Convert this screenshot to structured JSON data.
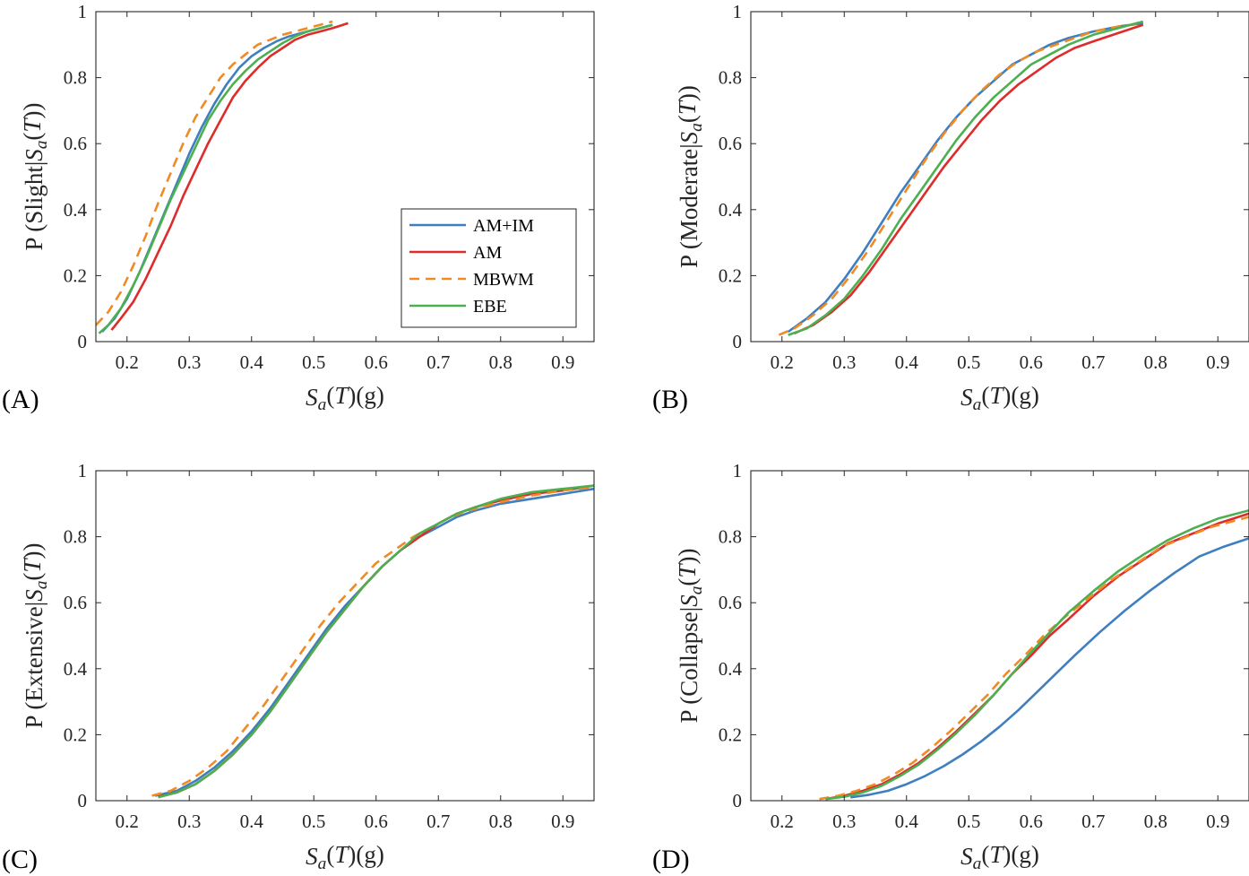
{
  "colors": {
    "AM+IM": "#3f7fbf",
    "AM": "#de2b2b",
    "MBWM": "#f08a24",
    "EBE": "#4caf50",
    "axis": "#262626"
  },
  "legend_entries": [
    "AM+IM",
    "AM",
    "MBWM",
    "EBE"
  ],
  "chart_data": [
    {
      "type": "line",
      "panel": "(A)",
      "xlabel": "S_a(T)(g)",
      "ylabel": "P (Slight|S_a(T))",
      "xlim": [
        0.15,
        0.95
      ],
      "ylim": [
        0,
        1
      ],
      "xticks": [
        "0.2",
        "0.3",
        "0.4",
        "0.5",
        "0.6",
        "0.7",
        "0.8",
        "0.9"
      ],
      "yticks": [
        "0",
        "0.2",
        "0.4",
        "0.6",
        "0.8",
        "1"
      ],
      "legend": "bottom-right",
      "grid": false,
      "series": [
        {
          "name": "AM+IM",
          "style": "solid",
          "x": [
            0.16,
            0.18,
            0.2,
            0.22,
            0.24,
            0.26,
            0.28,
            0.3,
            0.32,
            0.34,
            0.36,
            0.38,
            0.4,
            0.42,
            0.44,
            0.46,
            0.48,
            0.5,
            0.52,
            0.53
          ],
          "y": [
            0.03,
            0.07,
            0.13,
            0.21,
            0.3,
            0.39,
            0.48,
            0.57,
            0.65,
            0.72,
            0.78,
            0.83,
            0.865,
            0.89,
            0.91,
            0.925,
            0.935,
            0.945,
            0.955,
            0.96
          ]
        },
        {
          "name": "AM",
          "style": "solid",
          "x": [
            0.175,
            0.19,
            0.21,
            0.23,
            0.25,
            0.27,
            0.29,
            0.31,
            0.33,
            0.35,
            0.37,
            0.39,
            0.41,
            0.43,
            0.45,
            0.47,
            0.49,
            0.51,
            0.53,
            0.555
          ],
          "y": [
            0.035,
            0.07,
            0.12,
            0.19,
            0.27,
            0.35,
            0.44,
            0.52,
            0.6,
            0.67,
            0.74,
            0.79,
            0.83,
            0.865,
            0.89,
            0.915,
            0.93,
            0.94,
            0.95,
            0.965
          ]
        },
        {
          "name": "MBWM",
          "style": "dashed",
          "x": [
            0.15,
            0.17,
            0.19,
            0.21,
            0.23,
            0.25,
            0.27,
            0.29,
            0.31,
            0.33,
            0.35,
            0.37,
            0.39,
            0.41,
            0.43,
            0.45,
            0.47,
            0.49,
            0.51,
            0.53
          ],
          "y": [
            0.05,
            0.09,
            0.15,
            0.23,
            0.32,
            0.42,
            0.51,
            0.6,
            0.68,
            0.74,
            0.8,
            0.84,
            0.87,
            0.9,
            0.915,
            0.93,
            0.94,
            0.95,
            0.96,
            0.97
          ]
        },
        {
          "name": "EBE",
          "style": "solid",
          "x": [
            0.155,
            0.17,
            0.19,
            0.21,
            0.23,
            0.25,
            0.27,
            0.29,
            0.31,
            0.33,
            0.35,
            0.37,
            0.39,
            0.41,
            0.43,
            0.45,
            0.47,
            0.49,
            0.51,
            0.53
          ],
          "y": [
            0.025,
            0.05,
            0.1,
            0.17,
            0.25,
            0.34,
            0.43,
            0.51,
            0.59,
            0.67,
            0.73,
            0.78,
            0.82,
            0.855,
            0.88,
            0.905,
            0.925,
            0.94,
            0.95,
            0.96
          ]
        }
      ]
    },
    {
      "type": "line",
      "panel": "(B)",
      "xlabel": "S_a(T)(g)",
      "ylabel": "P (Moderate|S_a(T))",
      "xlim": [
        0.15,
        0.95
      ],
      "ylim": [
        0,
        1
      ],
      "xticks": [
        "0.2",
        "0.3",
        "0.4",
        "0.5",
        "0.6",
        "0.7",
        "0.8",
        "0.9"
      ],
      "yticks": [
        "0",
        "0.2",
        "0.4",
        "0.6",
        "0.8",
        "1"
      ],
      "grid": false,
      "series": [
        {
          "name": "AM+IM",
          "style": "solid",
          "x": [
            0.21,
            0.24,
            0.27,
            0.3,
            0.33,
            0.36,
            0.39,
            0.42,
            0.45,
            0.48,
            0.51,
            0.54,
            0.57,
            0.6,
            0.63,
            0.66,
            0.7,
            0.74,
            0.78
          ],
          "y": [
            0.03,
            0.07,
            0.12,
            0.19,
            0.27,
            0.36,
            0.45,
            0.53,
            0.61,
            0.68,
            0.74,
            0.79,
            0.84,
            0.87,
            0.9,
            0.92,
            0.94,
            0.955,
            0.965
          ]
        },
        {
          "name": "AM",
          "style": "solid",
          "x": [
            0.22,
            0.25,
            0.28,
            0.31,
            0.34,
            0.37,
            0.4,
            0.43,
            0.46,
            0.49,
            0.52,
            0.55,
            0.58,
            0.61,
            0.64,
            0.67,
            0.7,
            0.74,
            0.78
          ],
          "y": [
            0.025,
            0.05,
            0.09,
            0.14,
            0.21,
            0.29,
            0.37,
            0.45,
            0.53,
            0.6,
            0.67,
            0.73,
            0.78,
            0.82,
            0.86,
            0.89,
            0.91,
            0.935,
            0.96
          ]
        },
        {
          "name": "MBWM",
          "style": "dashed",
          "x": [
            0.195,
            0.22,
            0.25,
            0.28,
            0.31,
            0.34,
            0.37,
            0.4,
            0.43,
            0.46,
            0.49,
            0.52,
            0.55,
            0.58,
            0.61,
            0.64,
            0.67,
            0.7,
            0.74,
            0.78
          ],
          "y": [
            0.02,
            0.04,
            0.08,
            0.13,
            0.2,
            0.28,
            0.37,
            0.46,
            0.55,
            0.63,
            0.7,
            0.76,
            0.81,
            0.85,
            0.88,
            0.9,
            0.92,
            0.94,
            0.955,
            0.965
          ]
        },
        {
          "name": "EBE",
          "style": "solid",
          "x": [
            0.21,
            0.24,
            0.27,
            0.3,
            0.33,
            0.36,
            0.39,
            0.42,
            0.45,
            0.48,
            0.51,
            0.54,
            0.57,
            0.6,
            0.63,
            0.66,
            0.7,
            0.74,
            0.78
          ],
          "y": [
            0.02,
            0.04,
            0.08,
            0.13,
            0.2,
            0.28,
            0.37,
            0.45,
            0.53,
            0.61,
            0.68,
            0.74,
            0.79,
            0.84,
            0.87,
            0.9,
            0.93,
            0.95,
            0.97
          ]
        }
      ]
    },
    {
      "type": "line",
      "panel": "(C)",
      "xlabel": "S_a(T)(g)",
      "ylabel": "P (Extensive|S_a(T))",
      "xlim": [
        0.15,
        0.95
      ],
      "ylim": [
        0,
        1
      ],
      "xticks": [
        "0.2",
        "0.3",
        "0.4",
        "0.5",
        "0.6",
        "0.7",
        "0.8",
        "0.9"
      ],
      "yticks": [
        "0",
        "0.2",
        "0.4",
        "0.6",
        "0.8",
        "1"
      ],
      "grid": false,
      "series": [
        {
          "name": "AM+IM",
          "style": "solid",
          "x": [
            0.245,
            0.28,
            0.31,
            0.34,
            0.37,
            0.4,
            0.43,
            0.46,
            0.49,
            0.52,
            0.55,
            0.58,
            0.61,
            0.64,
            0.67,
            0.7,
            0.73,
            0.76,
            0.8,
            0.85,
            0.9,
            0.95
          ],
          "y": [
            0.015,
            0.03,
            0.06,
            0.1,
            0.15,
            0.21,
            0.28,
            0.36,
            0.44,
            0.52,
            0.59,
            0.65,
            0.71,
            0.76,
            0.8,
            0.83,
            0.86,
            0.88,
            0.9,
            0.915,
            0.93,
            0.945
          ]
        },
        {
          "name": "AM",
          "style": "solid",
          "x": [
            0.25,
            0.28,
            0.31,
            0.34,
            0.37,
            0.4,
            0.43,
            0.46,
            0.49,
            0.52,
            0.55,
            0.58,
            0.61,
            0.64,
            0.67,
            0.7,
            0.73,
            0.76,
            0.8,
            0.85,
            0.9,
            0.95
          ],
          "y": [
            0.012,
            0.025,
            0.05,
            0.09,
            0.14,
            0.2,
            0.27,
            0.35,
            0.43,
            0.51,
            0.58,
            0.65,
            0.71,
            0.76,
            0.8,
            0.84,
            0.87,
            0.89,
            0.91,
            0.93,
            0.94,
            0.955
          ]
        },
        {
          "name": "MBWM",
          "style": "dashed",
          "x": [
            0.24,
            0.27,
            0.3,
            0.33,
            0.36,
            0.39,
            0.42,
            0.45,
            0.48,
            0.51,
            0.54,
            0.57,
            0.6,
            0.63,
            0.66,
            0.69,
            0.72,
            0.75,
            0.8,
            0.85,
            0.9,
            0.95
          ],
          "y": [
            0.015,
            0.03,
            0.06,
            0.1,
            0.15,
            0.22,
            0.29,
            0.37,
            0.45,
            0.53,
            0.6,
            0.66,
            0.72,
            0.76,
            0.8,
            0.83,
            0.86,
            0.88,
            0.905,
            0.925,
            0.94,
            0.95
          ]
        },
        {
          "name": "EBE",
          "style": "solid",
          "x": [
            0.25,
            0.28,
            0.31,
            0.34,
            0.37,
            0.4,
            0.43,
            0.46,
            0.49,
            0.52,
            0.55,
            0.58,
            0.61,
            0.64,
            0.67,
            0.7,
            0.73,
            0.76,
            0.8,
            0.85,
            0.9,
            0.95
          ],
          "y": [
            0.01,
            0.025,
            0.05,
            0.09,
            0.14,
            0.2,
            0.27,
            0.35,
            0.43,
            0.51,
            0.58,
            0.65,
            0.71,
            0.76,
            0.81,
            0.84,
            0.87,
            0.89,
            0.915,
            0.935,
            0.945,
            0.955
          ]
        }
      ]
    },
    {
      "type": "line",
      "panel": "(D)",
      "xlabel": "S_a(T)(g)",
      "ylabel": "P (Collapse|S_a(T))",
      "xlim": [
        0.15,
        0.95
      ],
      "ylim": [
        0,
        1
      ],
      "xticks": [
        "0.2",
        "0.3",
        "0.4",
        "0.5",
        "0.6",
        "0.7",
        "0.8",
        "0.9"
      ],
      "yticks": [
        "0",
        "0.2",
        "0.4",
        "0.6",
        "0.8",
        "1"
      ],
      "grid": false,
      "series": [
        {
          "name": "AM+IM",
          "style": "solid",
          "x": [
            0.31,
            0.34,
            0.37,
            0.4,
            0.43,
            0.46,
            0.49,
            0.52,
            0.55,
            0.58,
            0.61,
            0.64,
            0.67,
            0.71,
            0.75,
            0.79,
            0.83,
            0.87,
            0.91,
            0.95
          ],
          "y": [
            0.01,
            0.018,
            0.03,
            0.05,
            0.075,
            0.105,
            0.14,
            0.18,
            0.225,
            0.275,
            0.33,
            0.385,
            0.44,
            0.51,
            0.575,
            0.635,
            0.69,
            0.74,
            0.77,
            0.795
          ]
        },
        {
          "name": "AM",
          "style": "solid",
          "x": [
            0.27,
            0.3,
            0.33,
            0.36,
            0.39,
            0.42,
            0.45,
            0.48,
            0.51,
            0.54,
            0.57,
            0.6,
            0.63,
            0.66,
            0.7,
            0.74,
            0.78,
            0.82,
            0.86,
            0.9,
            0.95
          ],
          "y": [
            0.005,
            0.015,
            0.03,
            0.05,
            0.08,
            0.115,
            0.16,
            0.21,
            0.265,
            0.32,
            0.385,
            0.44,
            0.5,
            0.55,
            0.62,
            0.68,
            0.73,
            0.78,
            0.81,
            0.84,
            0.87
          ]
        },
        {
          "name": "MBWM",
          "style": "dashed",
          "x": [
            0.26,
            0.29,
            0.32,
            0.35,
            0.38,
            0.41,
            0.44,
            0.47,
            0.5,
            0.53,
            0.56,
            0.59,
            0.62,
            0.65,
            0.69,
            0.73,
            0.77,
            0.81,
            0.85,
            0.89,
            0.95
          ],
          "y": [
            0.005,
            0.015,
            0.03,
            0.05,
            0.08,
            0.115,
            0.16,
            0.21,
            0.265,
            0.32,
            0.385,
            0.44,
            0.5,
            0.55,
            0.61,
            0.67,
            0.72,
            0.77,
            0.8,
            0.83,
            0.86
          ]
        },
        {
          "name": "EBE",
          "style": "solid",
          "x": [
            0.27,
            0.3,
            0.33,
            0.36,
            0.39,
            0.42,
            0.45,
            0.48,
            0.51,
            0.54,
            0.57,
            0.6,
            0.63,
            0.66,
            0.7,
            0.74,
            0.78,
            0.82,
            0.86,
            0.9,
            0.95
          ],
          "y": [
            0.005,
            0.012,
            0.025,
            0.045,
            0.075,
            0.11,
            0.155,
            0.205,
            0.26,
            0.32,
            0.385,
            0.45,
            0.51,
            0.57,
            0.635,
            0.695,
            0.745,
            0.79,
            0.825,
            0.855,
            0.88
          ]
        }
      ]
    }
  ]
}
